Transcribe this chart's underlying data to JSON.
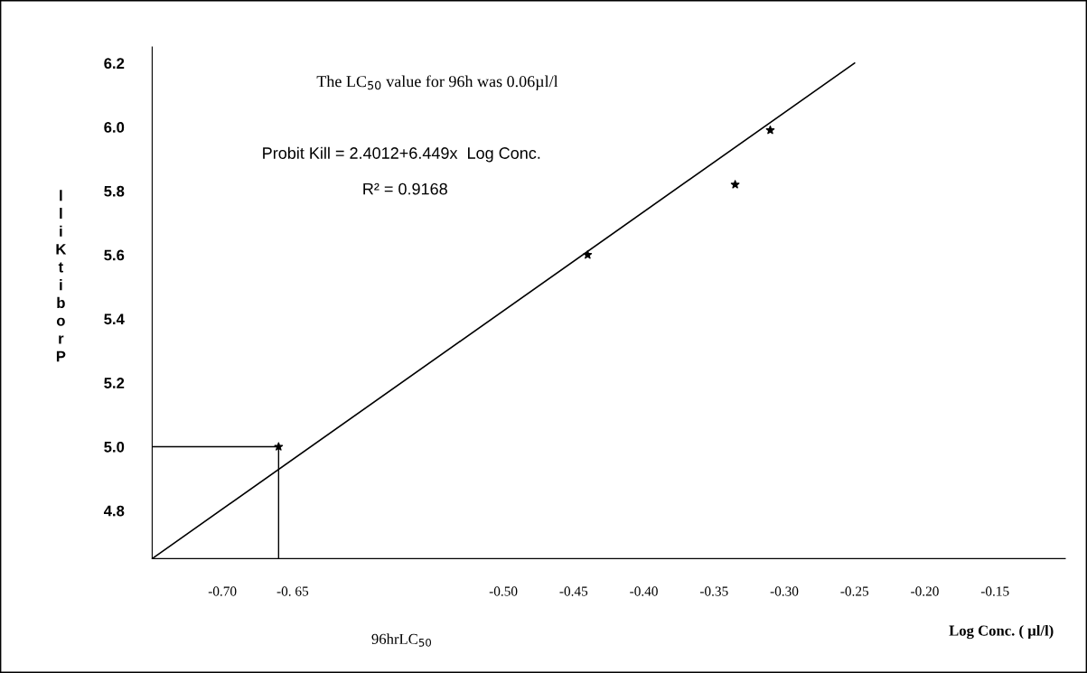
{
  "chart_data": {
    "type": "scatter",
    "ylabel": "lliKtiborP",
    "xlabel": "Log Conc. ( µl/l)",
    "annotations": [
      "The LC$_{50}$ value for 96h was 0.06µl/l",
      "Probit Kill = 2.4012+6.449x  Log Conc.",
      "R² = 0.9168",
      "96hrLC$_{50}$"
    ],
    "series": [
      {
        "color": "#000000",
        "marker": "star",
        "x": [
          -0.66,
          -0.44,
          -0.335,
          -0.31
        ],
        "values": [
          5.0,
          5.6,
          5.82,
          5.99
        ]
      },
      {
        "type": "line",
        "color": "#000000",
        "marker": "none",
        "x": [
          -0.75,
          -0.25
        ],
        "values": [
          4.65,
          6.2
        ]
      }
    ],
    "ref_lines": [
      {
        "axis": "y",
        "value": 5.0,
        "color": "#000000"
      },
      {
        "axis": "x",
        "value": -0.66,
        "color": "#000000"
      }
    ],
    "xlim": [
      -0.75,
      -0.1
    ],
    "ylim": [
      4.65,
      6.25
    ],
    "xticks": [
      {
        "value": -0.7,
        "label": "-0.70"
      },
      {
        "value": -0.65,
        "label": "-0. 65"
      },
      {
        "value": -0.5,
        "label": "-0.50"
      },
      {
        "value": -0.45,
        "label": "-0.45"
      },
      {
        "value": -0.4,
        "label": "-0.40"
      },
      {
        "value": -0.35,
        "label": "-0.35"
      },
      {
        "value": -0.3,
        "label": "-0.30"
      },
      {
        "value": -0.25,
        "label": "-0.25"
      },
      {
        "value": -0.2,
        "label": "-0.20"
      },
      {
        "value": -0.15,
        "label": "-0.15"
      }
    ],
    "yticks": [
      4.8,
      {
        "value": 5.0,
        "label": "5.0"
      },
      5.2,
      5.4,
      5.6,
      5.8,
      {
        "value": 6.0,
        "label": "6.0"
      },
      6.2
    ],
    "grid": false,
    "legend": false
  }
}
